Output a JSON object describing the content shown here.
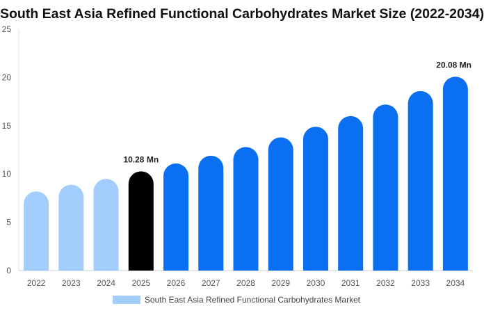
{
  "chart_data": {
    "type": "bar",
    "title": "South East Asia Refined Functional Carbohydrates Market Size (2022-2034)",
    "categories": [
      "2022",
      "2023",
      "2024",
      "2025",
      "2026",
      "2027",
      "2028",
      "2029",
      "2030",
      "2031",
      "2032",
      "2033",
      "2034"
    ],
    "series": [
      {
        "name": "South East Asia Refined Functional Carbohydrates Market",
        "values": [
          8.2,
          8.9,
          9.5,
          10.28,
          11.1,
          11.9,
          12.8,
          13.8,
          14.9,
          16.0,
          17.2,
          18.6,
          20.08
        ]
      }
    ],
    "ylim": [
      0,
      25
    ],
    "yticks": [
      0,
      5,
      10,
      15,
      20,
      25
    ],
    "data_labels": [
      {
        "index": 3,
        "text": "10.28 Mn"
      },
      {
        "index": 12,
        "text": "20.08 Mn"
      }
    ],
    "colors": {
      "historical": "#a3cdfd",
      "current": "#000000",
      "forecast": "#0a6ff0",
      "legend": "#a3cdfd"
    },
    "bar_color_groups": [
      "historical",
      "historical",
      "historical",
      "current",
      "forecast",
      "forecast",
      "forecast",
      "forecast",
      "forecast",
      "forecast",
      "forecast",
      "forecast",
      "forecast"
    ],
    "grid": false,
    "legend_position": "bottom-center"
  }
}
